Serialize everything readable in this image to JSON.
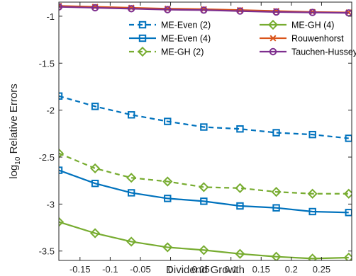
{
  "chart_data": {
    "type": "line",
    "xlabel": "Dividend Growth",
    "ylabel_parts": [
      "log",
      "10",
      " Relative Errors"
    ],
    "xlim": [
      -0.185,
      0.3
    ],
    "ylim": [
      -3.6,
      -0.85
    ],
    "xticks": [
      -0.15,
      -0.1,
      -0.05,
      0,
      0.05,
      0.1,
      0.15,
      0.2,
      0.25
    ],
    "xtick_labels": [
      "-0.15",
      "-0.1",
      "-0.05",
      "0",
      "0.05",
      "0.1",
      "0.15",
      "0.2",
      "0.25"
    ],
    "yticks": [
      -1,
      -1.5,
      -2,
      -2.5,
      -3,
      -3.5
    ],
    "ytick_labels": [
      "-1",
      "-1.5",
      "-2",
      "-2.5",
      "-3",
      "-3.5"
    ],
    "grid": false,
    "legend_position": "top-right",
    "x": [
      -0.185,
      -0.125,
      -0.065,
      -0.005,
      0.055,
      0.115,
      0.175,
      0.235,
      0.295
    ],
    "series": [
      {
        "name": "ME-Even (2)",
        "color": "#0072BD",
        "dash": "dashed",
        "marker": "square",
        "values": [
          -1.85,
          -1.96,
          -2.05,
          -2.12,
          -2.18,
          -2.2,
          -2.24,
          -2.26,
          -2.3
        ]
      },
      {
        "name": "ME-GH (4)",
        "color": "#77AC30",
        "dash": "solid",
        "marker": "diamond",
        "values": [
          -3.19,
          -3.31,
          -3.4,
          -3.46,
          -3.49,
          -3.53,
          -3.56,
          -3.58,
          -3.57
        ]
      },
      {
        "name": "ME-Even (4)",
        "color": "#0072BD",
        "dash": "solid",
        "marker": "square",
        "values": [
          -2.64,
          -2.78,
          -2.88,
          -2.94,
          -2.97,
          -3.02,
          -3.04,
          -3.08,
          -3.09
        ]
      },
      {
        "name": "Rouwenhorst",
        "color": "#D95319",
        "dash": "solid",
        "marker": "x",
        "values": [
          -0.89,
          -0.9,
          -0.91,
          -0.92,
          -0.925,
          -0.935,
          -0.945,
          -0.955,
          -0.96
        ]
      },
      {
        "name": "ME-GH (2)",
        "color": "#77AC30",
        "dash": "dashed",
        "marker": "diamond",
        "values": [
          -2.46,
          -2.62,
          -2.72,
          -2.76,
          -2.82,
          -2.83,
          -2.87,
          -2.89,
          -2.89
        ]
      },
      {
        "name": "Tauchen-Hussey",
        "color": "#7E2F8E",
        "dash": "solid",
        "marker": "circle",
        "values": [
          -0.9,
          -0.91,
          -0.92,
          -0.93,
          -0.935,
          -0.945,
          -0.955,
          -0.96,
          -0.965
        ]
      }
    ]
  }
}
